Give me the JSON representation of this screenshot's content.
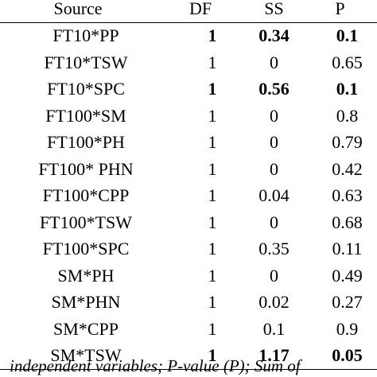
{
  "table": {
    "headers": {
      "source": "Source",
      "df": "DF",
      "ss": "SS",
      "p": "P"
    },
    "rows": [
      {
        "source": "FT10*PP",
        "df": "1",
        "ss": "0.34",
        "p": "0.1",
        "bold": true
      },
      {
        "source": "FT10*TSW",
        "df": "1",
        "ss": "0",
        "p": "0.65",
        "bold": false
      },
      {
        "source": "FT10*SPC",
        "df": "1",
        "ss": "0.56",
        "p": "0.1",
        "bold": true
      },
      {
        "source": "FT100*SM",
        "df": "1",
        "ss": "0",
        "p": "0.8",
        "bold": false
      },
      {
        "source": "FT100*PH",
        "df": "1",
        "ss": "0",
        "p": "0.79",
        "bold": false
      },
      {
        "source": "FT100* PHN",
        "df": "1",
        "ss": "0",
        "p": "0.42",
        "bold": false
      },
      {
        "source": "FT100*CPP",
        "df": "1",
        "ss": "0.04",
        "p": "0.63",
        "bold": false
      },
      {
        "source": "FT100*TSW",
        "df": "1",
        "ss": "0",
        "p": "0.68",
        "bold": false
      },
      {
        "source": "FT100*SPC",
        "df": "1",
        "ss": "0.35",
        "p": "0.11",
        "bold": false
      },
      {
        "source": "SM*PH",
        "df": "1",
        "ss": "0",
        "p": "0.49",
        "bold": false
      },
      {
        "source": "SM*PHN",
        "df": "1",
        "ss": "0.02",
        "p": "0.27",
        "bold": false
      },
      {
        "source": "SM*CPP",
        "df": "1",
        "ss": "0.1",
        "p": "0.9",
        "bold": false
      },
      {
        "source": "SM*TSW",
        "df": "1",
        "ss": "1.17",
        "p": "0.05",
        "bold": true
      }
    ]
  },
  "footnote": "independent variables; P-value (P); Sum of"
}
